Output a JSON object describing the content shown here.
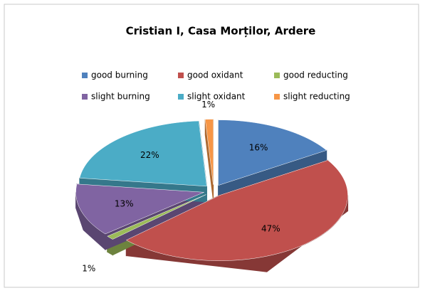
{
  "chart_data": {
    "type": "pie3d",
    "title": "Cristian I, Casa Morților, Ardere",
    "categories": [
      "good burning",
      "good oxidant",
      "good reducting",
      "slight burning",
      "slight oxidant",
      "slight reducting"
    ],
    "values": [
      16,
      47,
      1,
      13,
      22,
      1
    ],
    "value_labels": [
      "16%",
      "47%",
      "1%",
      "13%",
      "22%",
      "1%"
    ],
    "colors": [
      "#4f81bd",
      "#c0504d",
      "#9bbb59",
      "#8064a2",
      "#4bacc6",
      "#f79646"
    ],
    "legend": "top"
  }
}
